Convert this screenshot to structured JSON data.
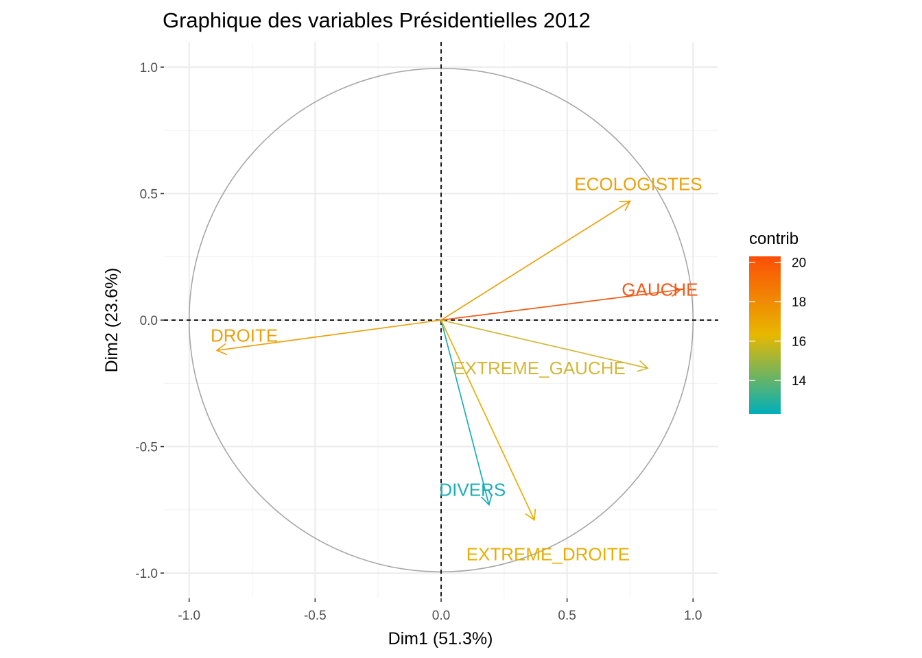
{
  "chart_data": {
    "type": "scatter",
    "subtype": "pca-variable-correlation-circle",
    "title": "Graphique des variables  Présidentielles 2012",
    "xlabel": "Dim1 (51.3%)",
    "ylabel": "Dim2 (23.6%)",
    "xlim": [
      -1.1,
      1.1
    ],
    "ylim": [
      -1.1,
      1.1
    ],
    "x_ticks": [
      -1.0,
      -0.5,
      0.0,
      0.5,
      1.0
    ],
    "x_tick_labels": [
      "-1.0",
      "-0.5",
      "0.0",
      "0.5",
      "1.0"
    ],
    "y_ticks": [
      1.0,
      0.5,
      0.0,
      -0.5,
      -1.0
    ],
    "y_tick_labels": [
      "1.0",
      "0.5",
      "0.0",
      "-0.5",
      "-1.0"
    ],
    "grid": true,
    "unit_circle": true,
    "reference_lines": "dashed at x=0 and y=0",
    "legend": {
      "title": "contrib",
      "placement": "right",
      "min": 12.3,
      "max": 20.3,
      "ticks": [
        20,
        18,
        16,
        14
      ],
      "tick_labels": [
        "20",
        "18",
        "16",
        "14"
      ],
      "colors": [
        "#00AFBB",
        "#E7B800",
        "#FC4E07"
      ]
    },
    "variables": [
      {
        "label": "ECOLOGISTES",
        "x": 0.75,
        "y": 0.47,
        "contrib": 17.8,
        "color": "#EBA10A"
      },
      {
        "label": "GAUCHE",
        "x": 0.95,
        "y": 0.12,
        "contrib": 20.0,
        "color": "#F15A16"
      },
      {
        "label": "DROITE",
        "x": -0.89,
        "y": -0.12,
        "contrib": 17.8,
        "color": "#EBA10A"
      },
      {
        "label": "EXTREME_GAUCHE",
        "x": 0.82,
        "y": -0.19,
        "contrib": 15.5,
        "color": "#D2B738"
      },
      {
        "label": "DIVERS",
        "x": 0.19,
        "y": -0.73,
        "contrib": 12.5,
        "color": "#19AEB5"
      },
      {
        "label": "EXTREME_DROITE",
        "x": 0.37,
        "y": -0.79,
        "contrib": 17.2,
        "color": "#E7AE00"
      }
    ]
  }
}
